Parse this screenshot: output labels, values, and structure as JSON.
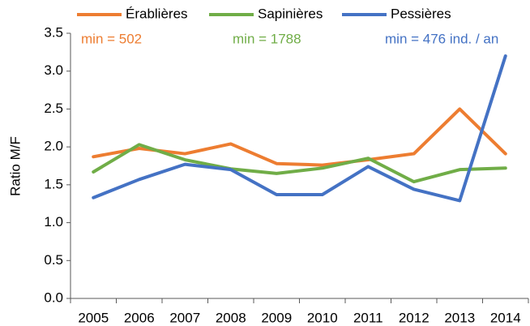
{
  "chart_data": {
    "type": "line",
    "y_label": "Ratio M/F",
    "categories": [
      "2005",
      "2006",
      "2007",
      "2008",
      "2009",
      "2010",
      "2011",
      "2012",
      "2013",
      "2014"
    ],
    "series": [
      {
        "name": "Érablières",
        "color": "#ed7d31",
        "values": [
          1.87,
          1.98,
          1.91,
          2.04,
          1.78,
          1.76,
          1.83,
          1.91,
          2.5,
          1.91
        ]
      },
      {
        "name": "Sapinières",
        "color": "#70ad47",
        "values": [
          1.67,
          2.03,
          1.83,
          1.71,
          1.65,
          1.72,
          1.85,
          1.54,
          1.7,
          1.72
        ]
      },
      {
        "name": "Pessières",
        "color": "#4472c4",
        "values": [
          1.33,
          1.57,
          1.77,
          1.7,
          1.37,
          1.37,
          1.74,
          1.44,
          1.29,
          3.2
        ]
      }
    ],
    "annotations": [
      {
        "text": "min = 502",
        "color": "#ed7d31"
      },
      {
        "text": "min = 1788",
        "color": "#70ad47"
      },
      {
        "text": "min = 476 ind. / an",
        "color": "#4472c4"
      }
    ],
    "ylim": [
      0,
      3.5
    ],
    "yticks": [
      {
        "value": 0,
        "label": "0.0"
      },
      0.5,
      {
        "value": 1,
        "label": "1.0"
      },
      1.5,
      {
        "value": 2,
        "label": "2.0"
      },
      2.5,
      {
        "value": 3,
        "label": "3.0"
      },
      3.5
    ],
    "legend": "top"
  }
}
